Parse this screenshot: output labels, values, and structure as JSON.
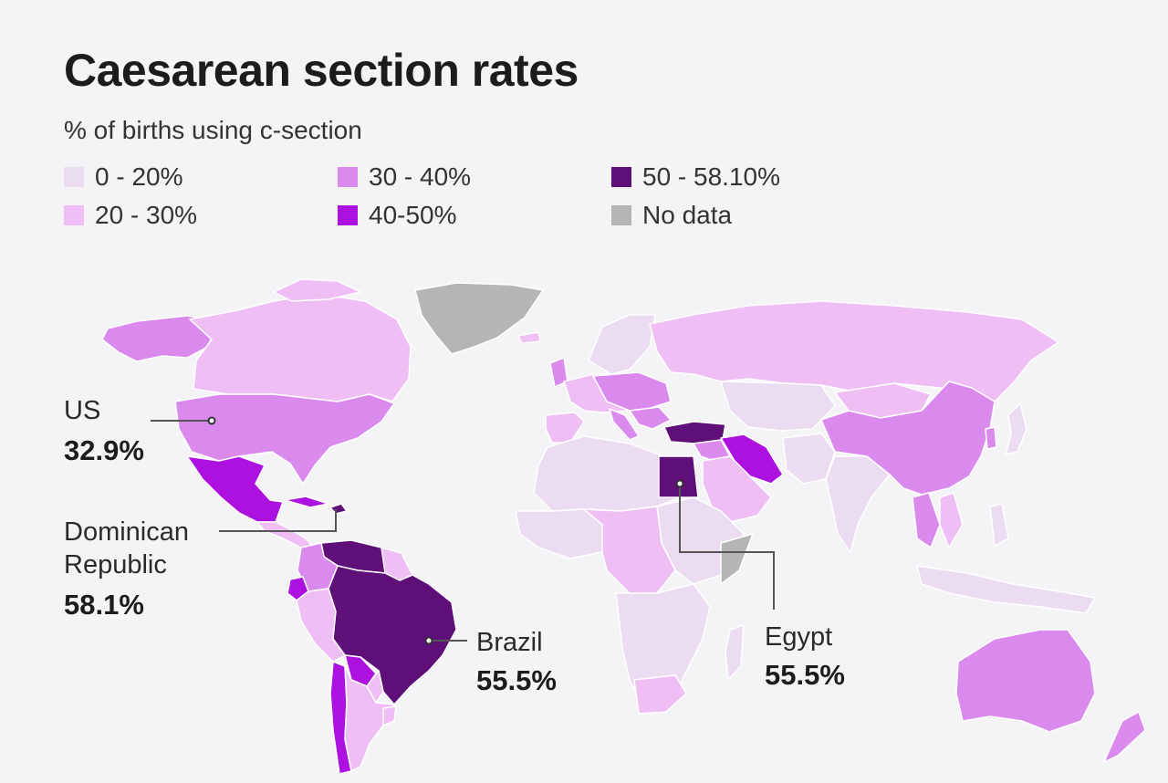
{
  "title": "Caesarean section rates",
  "subtitle": "% of births using c-section",
  "legend": [
    {
      "label": "0 - 20%",
      "color": "#ecdcf2"
    },
    {
      "label": "20 - 30%",
      "color": "#eebef4"
    },
    {
      "label": "30 - 40%",
      "color": "#d98aec"
    },
    {
      "label": "40-50%",
      "color": "#ad11e0"
    },
    {
      "label": "50 - 58.10%",
      "color": "#5e0f78"
    },
    {
      "label": "No data",
      "color": "#b5b5b5"
    }
  ],
  "callouts": [
    {
      "name": "US",
      "value": "32.9%"
    },
    {
      "name": "Dominican Republic",
      "value": "58.1%"
    },
    {
      "name": "Brazil",
      "value": "55.5%"
    },
    {
      "name": "Egypt",
      "value": "55.5%"
    }
  ]
}
